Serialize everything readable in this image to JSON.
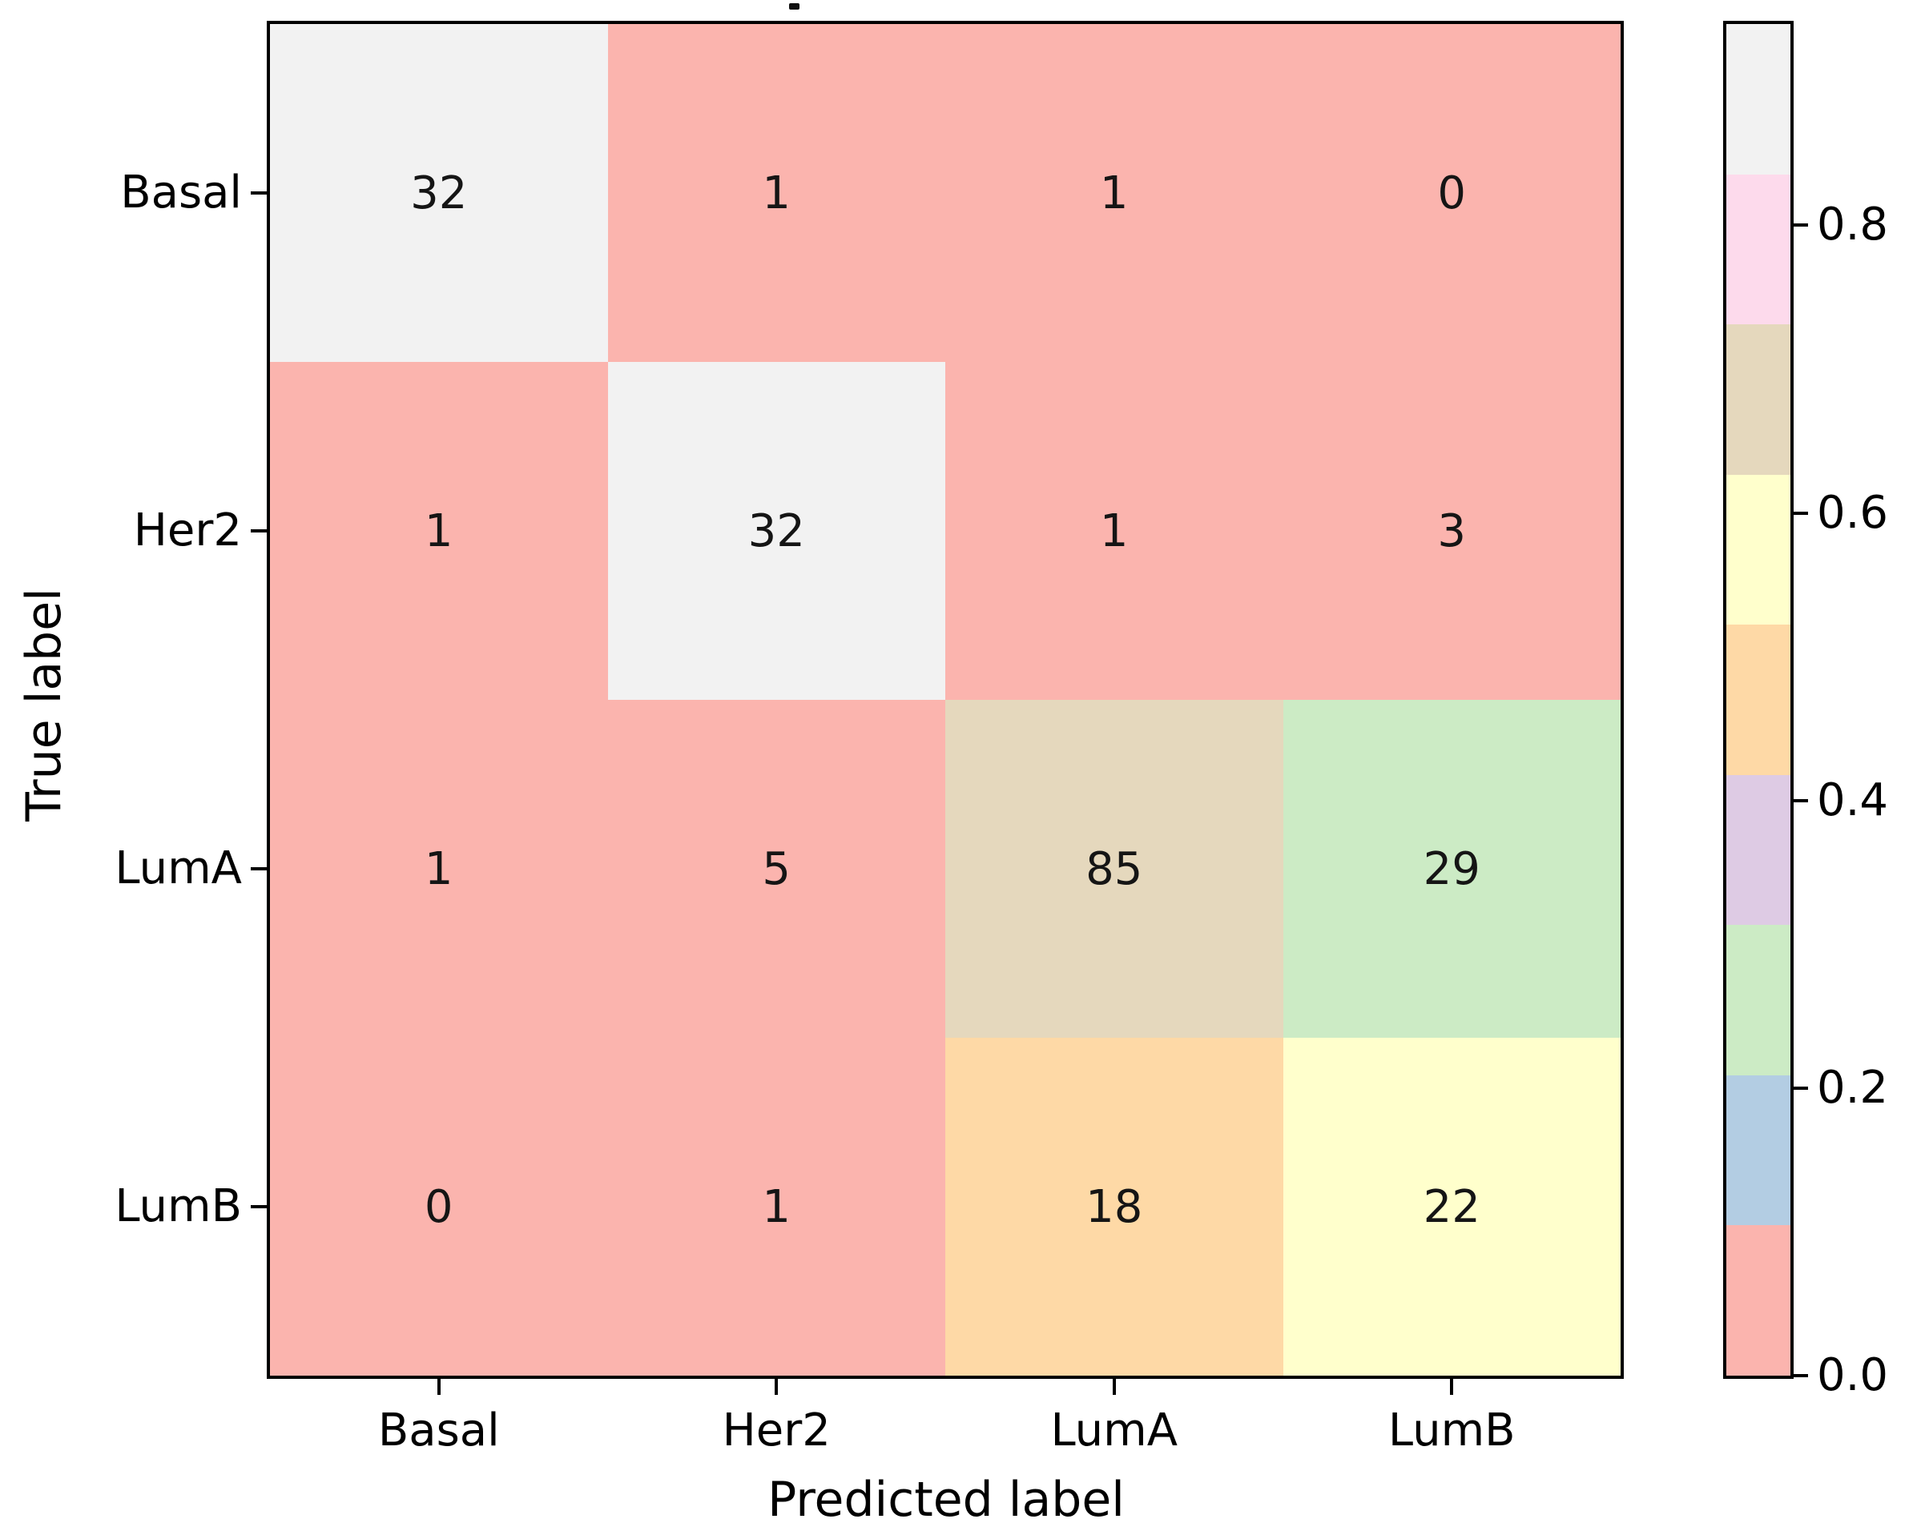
{
  "chart_data": {
    "type": "heatmap",
    "subtype": "confusion-matrix",
    "title": "",
    "xlabel": "Predicted label",
    "ylabel": "True label",
    "x_ticklabels": [
      "Basal",
      "Her2",
      "LumA",
      "LumB"
    ],
    "y_ticklabels": [
      "Basal",
      "Her2",
      "LumA",
      "LumB"
    ],
    "matrix": [
      [
        32,
        1,
        1,
        0
      ],
      [
        1,
        32,
        1,
        3
      ],
      [
        1,
        5,
        85,
        29
      ],
      [
        0,
        1,
        18,
        22
      ]
    ],
    "cell_colors": [
      [
        "#f2f2f2",
        "#fbb4ae",
        "#fbb4ae",
        "#fbb4ae"
      ],
      [
        "#fbb4ae",
        "#f2f2f2",
        "#fbb4ae",
        "#fbb4ae"
      ],
      [
        "#fbb4ae",
        "#fbb4ae",
        "#e5d8bd",
        "#ccebc5"
      ],
      [
        "#fbb4ae",
        "#fbb4ae",
        "#fed9a6",
        "#ffffcc"
      ]
    ],
    "value_text_color": "#151515",
    "colormap_name": "Pastel1 (9 discrete pastel segments)",
    "colorbar": {
      "segments_bottom_to_top": [
        "#fbb4ae",
        "#b3cde3",
        "#ccebc5",
        "#decbe4",
        "#fed9a6",
        "#ffffcc",
        "#e5d8bd",
        "#fddaec",
        "#f2f2f2"
      ],
      "tick_labels": [
        "0.0",
        "0.2",
        "0.4",
        "0.6",
        "0.8"
      ],
      "tick_values": [
        0.0,
        0.2,
        0.4,
        0.6,
        0.8
      ],
      "vmin": 0.0,
      "vmax": 0.94,
      "position": "right"
    },
    "layout_hints": {
      "grid": false,
      "cell_annotations": true,
      "axes_border_color": "#000000",
      "background": "#ffffff"
    }
  }
}
